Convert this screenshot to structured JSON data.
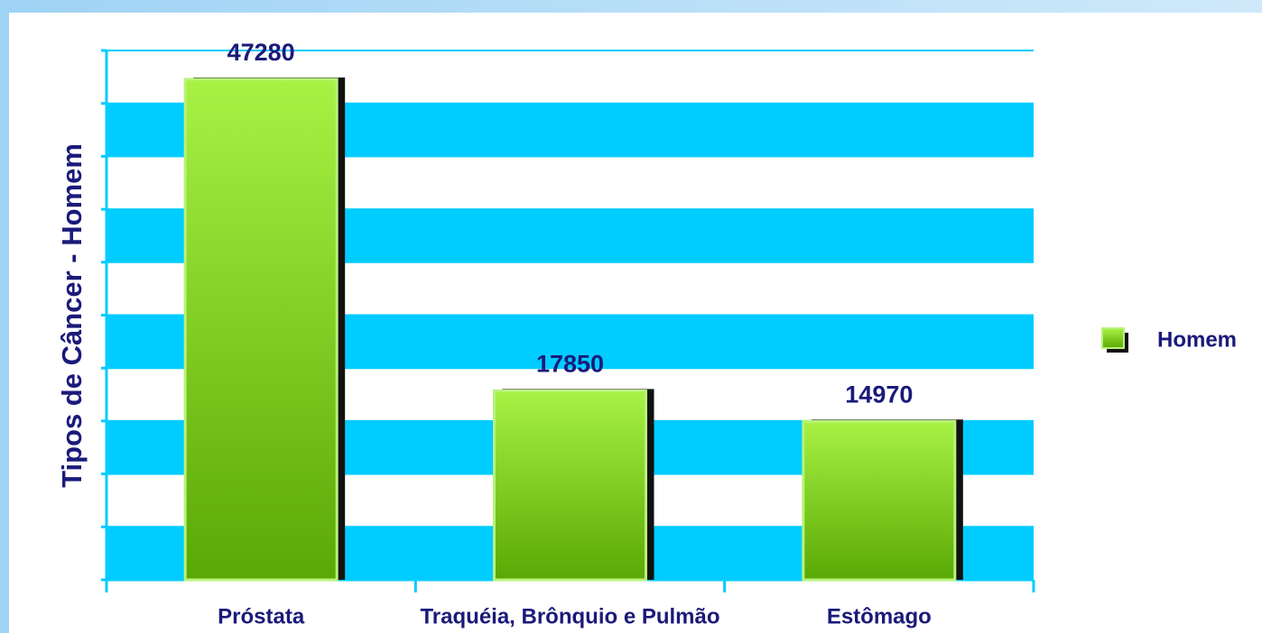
{
  "chart_data": {
    "type": "bar",
    "y_label": "Tipos de Câncer - Homem",
    "categories": [
      "Próstata",
      "Traquéia, Brônquio e Pulmão",
      "Estômago"
    ],
    "series": [
      {
        "name": "Homem",
        "color": "#7cd11c",
        "values": [
          47280,
          17850,
          14970
        ]
      }
    ],
    "ylim": [
      0,
      50000
    ],
    "yticks": [
      0,
      5000,
      10000,
      15000,
      20000,
      25000,
      30000,
      35000,
      40000,
      45000,
      50000
    ],
    "grid": true,
    "grid_color": "#00ccff",
    "legend": "right"
  }
}
